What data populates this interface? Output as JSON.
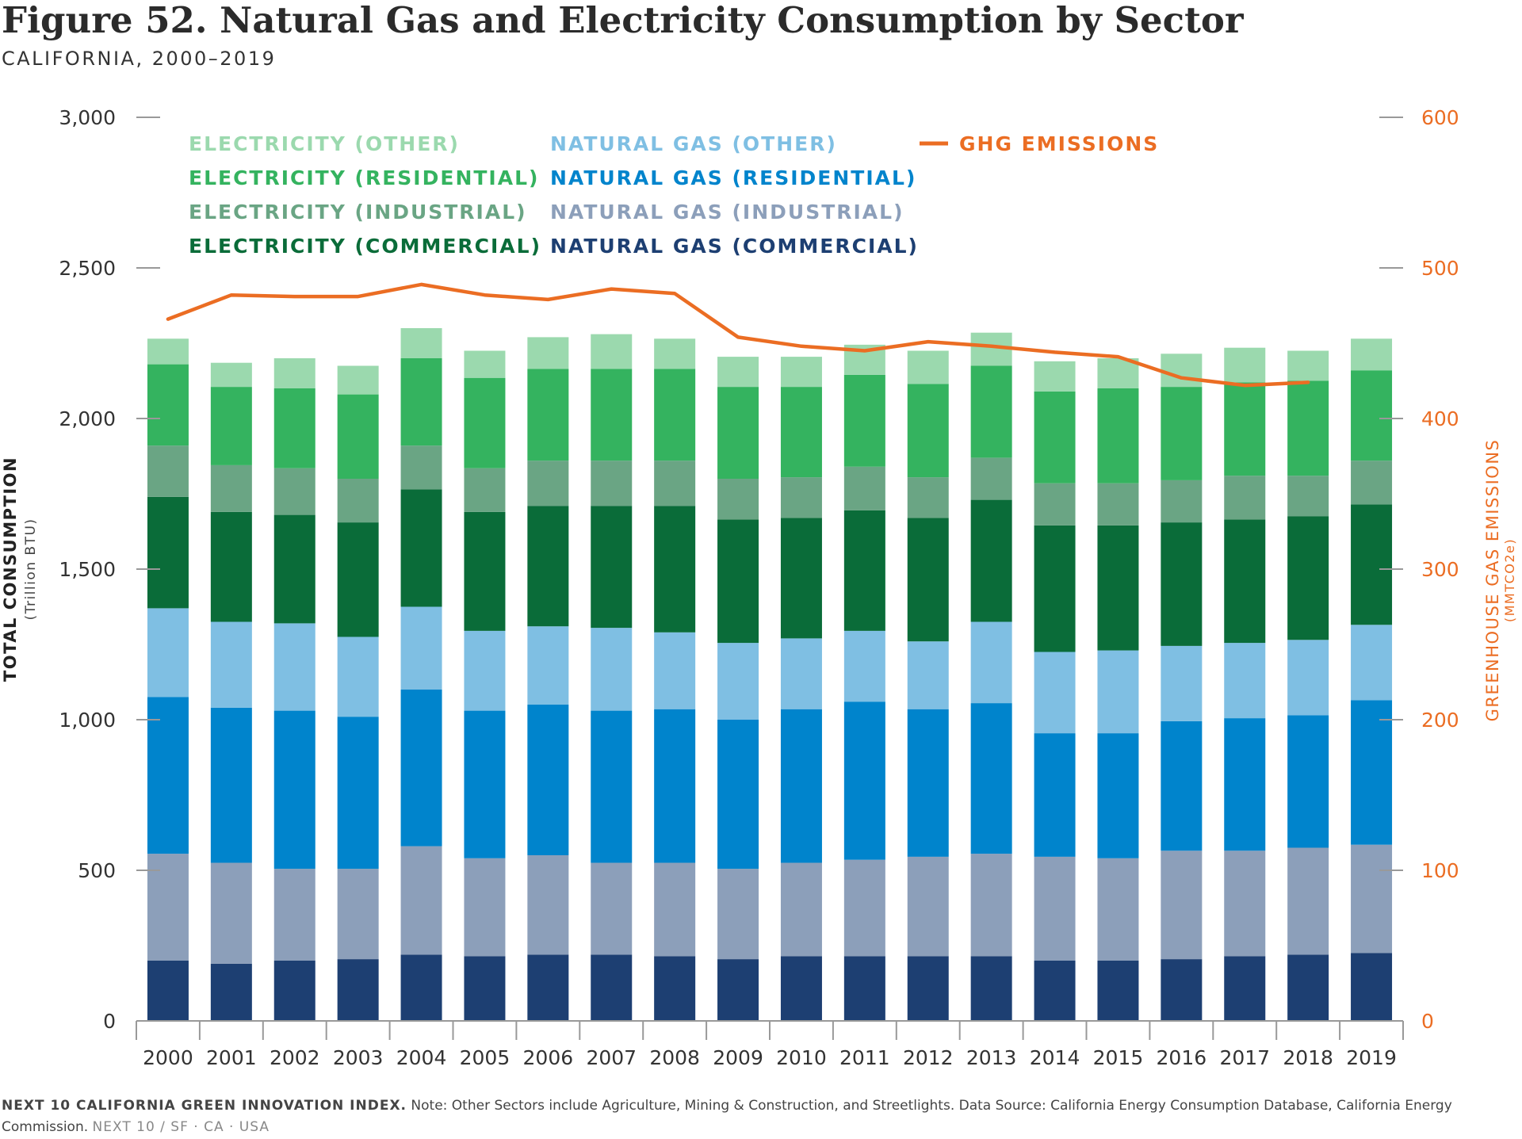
{
  "title": "Figure 52. Natural Gas and Electricity Consumption by Sector",
  "subtitle": "CALIFORNIA, 2000–2019",
  "footer": {
    "org": "NEXT 10 CALIFORNIA GREEN INNOVATION INDEX.",
    "note": "Note: Other Sectors include Agriculture, Mining & Construction, and Streetlights. Data Source: California Energy Consumption Database, California Energy Commission.",
    "brand": "NEXT 10 / SF · CA · USA"
  },
  "colors": {
    "ng_commercial": "#1d3f72",
    "ng_industrial": "#8c9fba",
    "ng_residential": "#0084cc",
    "ng_other": "#7fbfe3",
    "el_commercial": "#0a6c39",
    "el_industrial": "#6aa584",
    "el_residential": "#34b35f",
    "el_other": "#9bd9ae",
    "ghg": "#eb6d23",
    "axis": "#999999",
    "text": "#333333"
  },
  "chart_data": {
    "type": "bar",
    "stacked": true,
    "categories": [
      "2000",
      "2001",
      "2002",
      "2003",
      "2004",
      "2005",
      "2006",
      "2007",
      "2008",
      "2009",
      "2010",
      "2011",
      "2012",
      "2013",
      "2014",
      "2015",
      "2016",
      "2017",
      "2018",
      "2019"
    ],
    "ylabel": "TOTAL CONSUMPTION",
    "ylabel_unit": "(Trillion BTU)",
    "ylim": [
      0,
      3000
    ],
    "yticks": [
      0,
      500,
      1000,
      1500,
      2000,
      2500,
      3000
    ],
    "ytick_labels": [
      "0",
      "500",
      "1,000",
      "1,500",
      "2,000",
      "2,500",
      "3,000"
    ],
    "y2label": "GREENHOUSE GAS EMISSIONS",
    "y2label_unit": "(MMTCO2e)",
    "y2lim": [
      0,
      600
    ],
    "y2ticks": [
      0,
      100,
      200,
      300,
      400,
      500,
      600
    ],
    "y2tick_labels": [
      "0",
      "100",
      "200",
      "300",
      "400",
      "500",
      "600"
    ],
    "grid": false,
    "legend_placement": "top",
    "series": [
      {
        "name": "NATURAL GAS (COMMERCIAL)",
        "key": "ng_commercial",
        "values": [
          200,
          190,
          200,
          205,
          220,
          215,
          220,
          220,
          215,
          205,
          215,
          215,
          215,
          215,
          200,
          200,
          205,
          215,
          220,
          225
        ]
      },
      {
        "name": "NATURAL GAS (INDUSTRIAL)",
        "key": "ng_industrial",
        "values": [
          355,
          335,
          305,
          300,
          360,
          325,
          330,
          305,
          310,
          300,
          310,
          320,
          330,
          340,
          345,
          340,
          360,
          350,
          355,
          360
        ]
      },
      {
        "name": "NATURAL GAS (RESIDENTIAL)",
        "key": "ng_residential",
        "values": [
          520,
          515,
          525,
          505,
          520,
          490,
          500,
          505,
          510,
          495,
          510,
          525,
          490,
          500,
          410,
          415,
          430,
          440,
          440,
          480
        ]
      },
      {
        "name": "NATURAL GAS (OTHER)",
        "key": "ng_other",
        "values": [
          295,
          285,
          290,
          265,
          275,
          265,
          260,
          275,
          255,
          255,
          235,
          235,
          225,
          270,
          270,
          275,
          250,
          250,
          250,
          250
        ]
      },
      {
        "name": "ELECTRICITY (COMMERCIAL)",
        "key": "el_commercial",
        "values": [
          370,
          365,
          360,
          380,
          390,
          395,
          400,
          405,
          420,
          410,
          400,
          400,
          410,
          405,
          420,
          415,
          410,
          410,
          410,
          400
        ]
      },
      {
        "name": "ELECTRICITY (INDUSTRIAL)",
        "key": "el_industrial",
        "values": [
          170,
          155,
          155,
          145,
          145,
          145,
          150,
          150,
          150,
          135,
          135,
          145,
          135,
          140,
          140,
          140,
          140,
          145,
          135,
          145
        ]
      },
      {
        "name": "ELECTRICITY (RESIDENTIAL)",
        "key": "el_residential",
        "values": [
          270,
          260,
          265,
          280,
          290,
          300,
          305,
          305,
          305,
          305,
          300,
          305,
          310,
          305,
          305,
          315,
          310,
          310,
          315,
          300
        ]
      },
      {
        "name": "ELECTRICITY (OTHER)",
        "key": "el_other",
        "values": [
          85,
          80,
          100,
          95,
          100,
          90,
          105,
          115,
          100,
          100,
          100,
          100,
          110,
          110,
          100,
          100,
          110,
          115,
          100,
          105
        ]
      }
    ],
    "line": {
      "name": "GHG EMISSIONS",
      "key": "ghg",
      "axis": "right",
      "x": [
        "2000",
        "2001",
        "2002",
        "2003",
        "2004",
        "2005",
        "2006",
        "2007",
        "2008",
        "2009",
        "2010",
        "2011",
        "2012",
        "2013",
        "2014",
        "2015",
        "2016",
        "2017",
        "2018"
      ],
      "values": [
        466,
        482,
        481,
        481,
        489,
        482,
        479,
        486,
        483,
        454,
        448,
        445,
        451,
        448,
        444,
        441,
        427,
        422,
        424
      ]
    },
    "legend_rows": [
      [
        "ELECTRICITY (OTHER)",
        "NATURAL GAS (OTHER)",
        "GHG EMISSIONS"
      ],
      [
        "ELECTRICITY (RESIDENTIAL)",
        "NATURAL GAS (RESIDENTIAL)"
      ],
      [
        "ELECTRICITY (INDUSTRIAL)",
        "NATURAL GAS (INDUSTRIAL)"
      ],
      [
        "ELECTRICITY (COMMERCIAL)",
        "NATURAL GAS (COMMERCIAL)"
      ]
    ]
  }
}
